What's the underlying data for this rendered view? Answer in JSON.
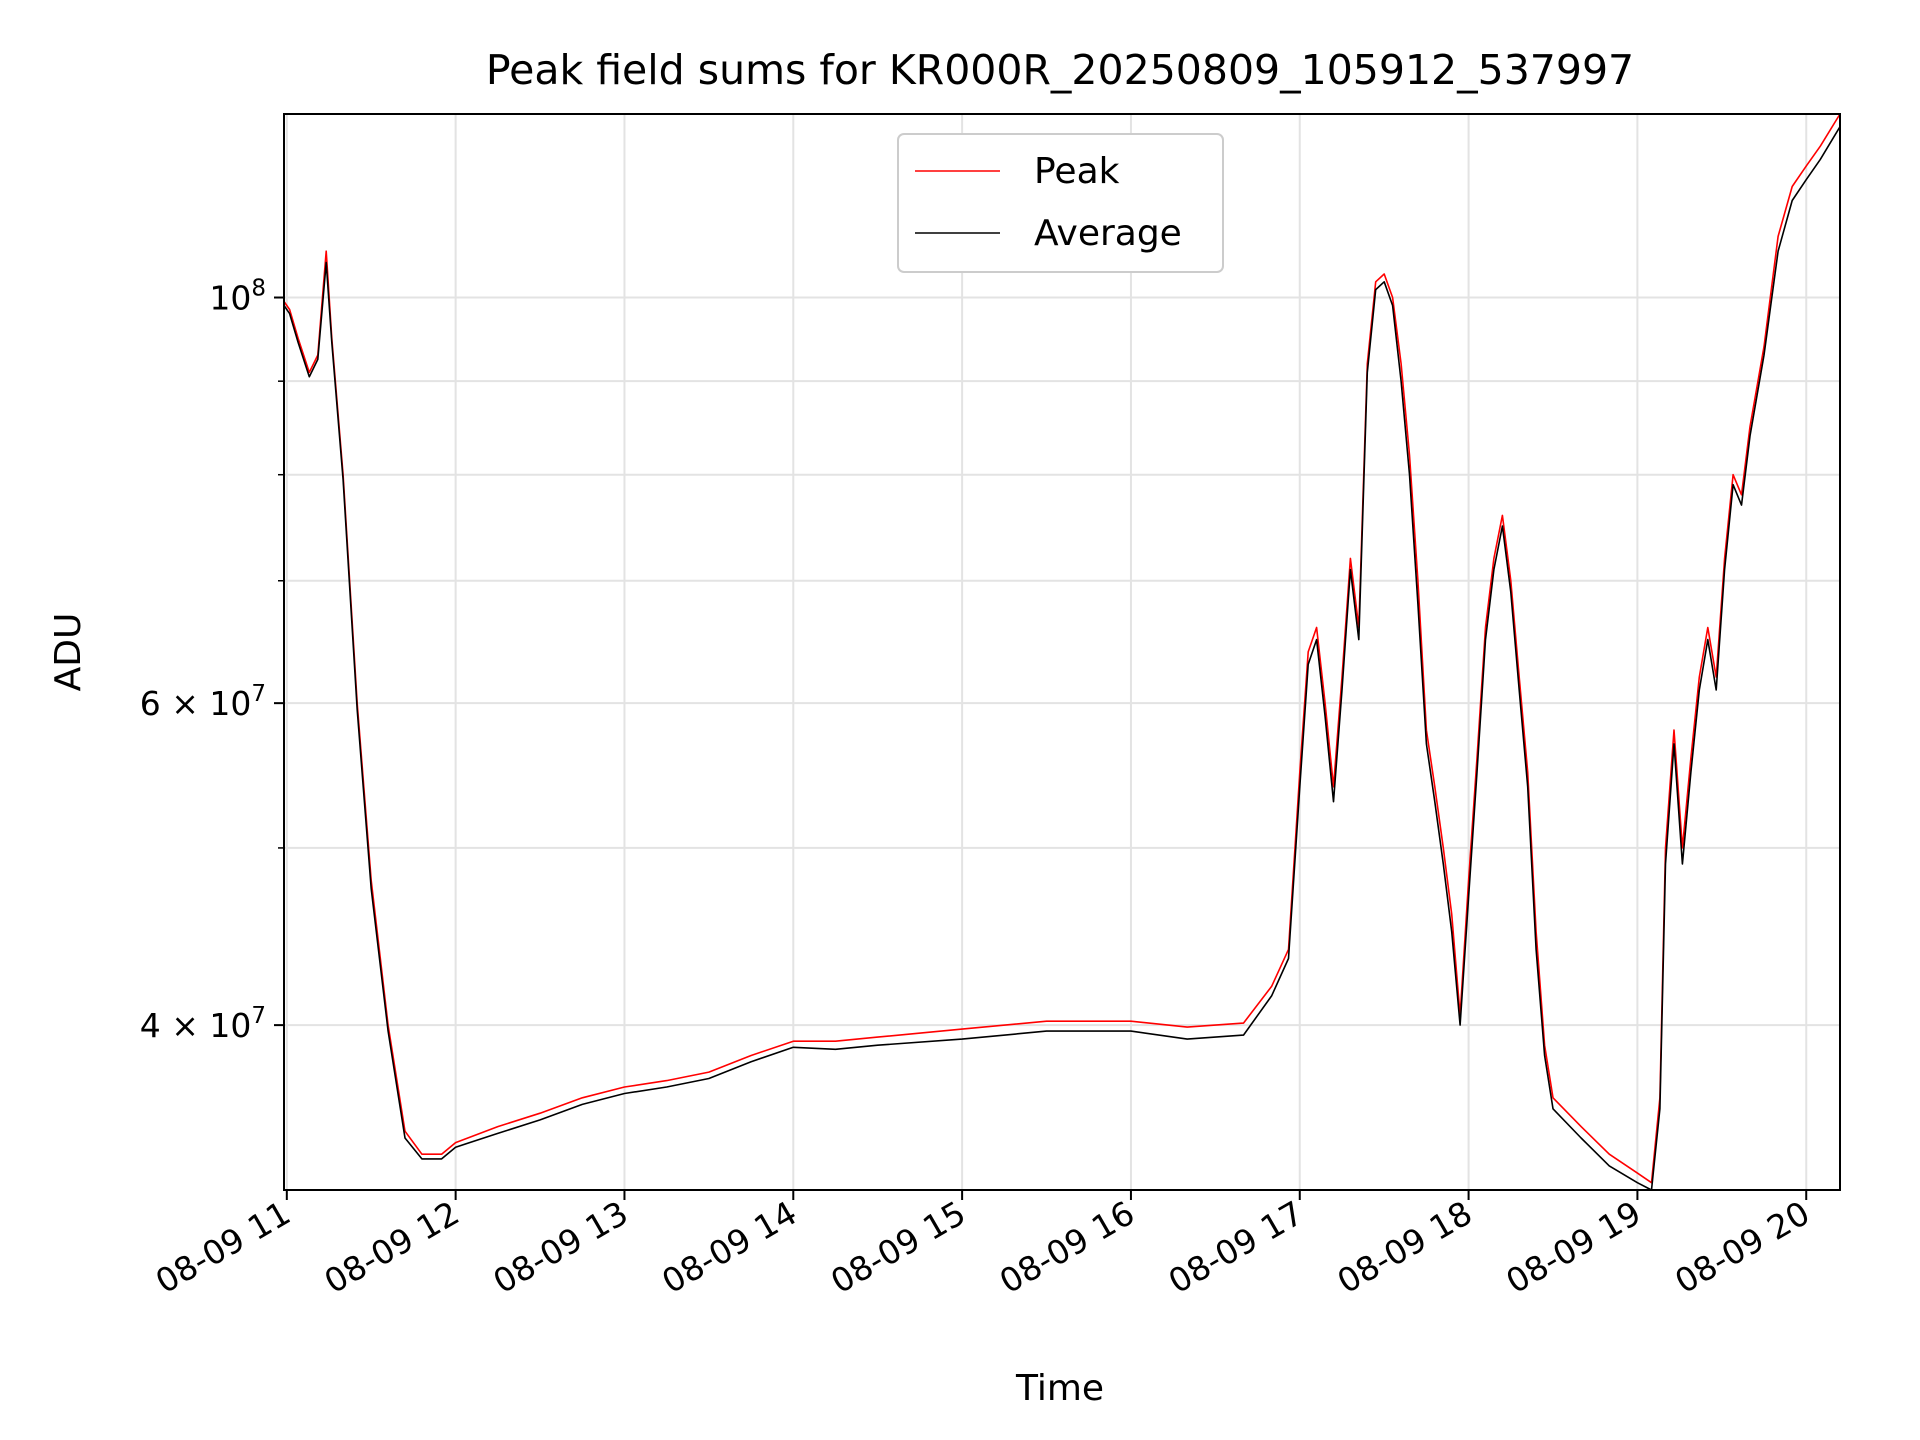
{
  "chart_data": {
    "type": "line",
    "title": "Peak field sums for KR000R_20250809_105912_537997",
    "xlabel": "Time",
    "ylabel": "ADU",
    "y_scale": "log",
    "ylim": [
      32500000,
      126000000
    ],
    "xlim": [
      "08-09 10:59",
      "08-09 20:12"
    ],
    "grid": true,
    "legend_position": "top-center",
    "x_ticks": [
      "08-09 11",
      "08-09 12",
      "08-09 13",
      "08-09 14",
      "08-09 15",
      "08-09 16",
      "08-09 17",
      "08-09 18",
      "08-09 19",
      "08-09 20"
    ],
    "y_ticks": [
      {
        "value": 40000000,
        "mantissa": "4",
        "exponent": "7"
      },
      {
        "value": 60000000,
        "mantissa": "6",
        "exponent": "7"
      },
      {
        "value": 100000000,
        "mantissa": "",
        "exponent": "8"
      }
    ],
    "series": [
      {
        "name": "Peak",
        "color": "#ff0000",
        "points": [
          [
            "10:59",
            99500000
          ],
          [
            "11:01",
            98500000
          ],
          [
            "11:04",
            95000000
          ],
          [
            "11:08",
            91000000
          ],
          [
            "11:11",
            93000000
          ],
          [
            "11:14",
            106000000
          ],
          [
            "11:16",
            95000000
          ],
          [
            "11:20",
            80000000
          ],
          [
            "11:25",
            60000000
          ],
          [
            "11:30",
            48000000
          ],
          [
            "11:36",
            40000000
          ],
          [
            "11:42",
            35000000
          ],
          [
            "11:48",
            34000000
          ],
          [
            "11:55",
            34000000
          ],
          [
            "12:00",
            34500000
          ],
          [
            "12:15",
            35200000
          ],
          [
            "12:30",
            35800000
          ],
          [
            "12:45",
            36500000
          ],
          [
            "13:00",
            37000000
          ],
          [
            "13:15",
            37300000
          ],
          [
            "13:30",
            37700000
          ],
          [
            "13:45",
            38500000
          ],
          [
            "14:00",
            39200000
          ],
          [
            "14:15",
            39200000
          ],
          [
            "14:30",
            39400000
          ],
          [
            "15:00",
            39800000
          ],
          [
            "15:30",
            40200000
          ],
          [
            "16:00",
            40200000
          ],
          [
            "16:20",
            39900000
          ],
          [
            "16:40",
            40100000
          ],
          [
            "16:50",
            42000000
          ],
          [
            "16:56",
            44000000
          ],
          [
            "17:00",
            55000000
          ],
          [
            "17:03",
            64000000
          ],
          [
            "17:06",
            66000000
          ],
          [
            "17:09",
            60000000
          ],
          [
            "17:12",
            54000000
          ],
          [
            "17:15",
            62000000
          ],
          [
            "17:18",
            72000000
          ],
          [
            "17:21",
            66000000
          ],
          [
            "17:24",
            92000000
          ],
          [
            "17:27",
            102000000
          ],
          [
            "17:30",
            103000000
          ],
          [
            "17:33",
            100000000
          ],
          [
            "17:36",
            92000000
          ],
          [
            "17:39",
            82000000
          ],
          [
            "17:42",
            70000000
          ],
          [
            "17:45",
            58000000
          ],
          [
            "17:48",
            54000000
          ],
          [
            "17:51",
            50000000
          ],
          [
            "17:54",
            46000000
          ],
          [
            "17:57",
            40500000
          ],
          [
            "18:00",
            48000000
          ],
          [
            "18:03",
            56000000
          ],
          [
            "18:06",
            66000000
          ],
          [
            "18:09",
            72000000
          ],
          [
            "18:12",
            76000000
          ],
          [
            "18:15",
            70000000
          ],
          [
            "18:18",
            62000000
          ],
          [
            "18:21",
            55000000
          ],
          [
            "18:24",
            45000000
          ],
          [
            "18:27",
            39000000
          ],
          [
            "18:30",
            36500000
          ],
          [
            "18:40",
            35200000
          ],
          [
            "18:50",
            34000000
          ],
          [
            "19:00",
            33200000
          ],
          [
            "19:05",
            32800000
          ],
          [
            "19:08",
            36500000
          ],
          [
            "19:10",
            50000000
          ],
          [
            "19:13",
            58000000
          ],
          [
            "19:16",
            50000000
          ],
          [
            "19:19",
            56000000
          ],
          [
            "19:22",
            62000000
          ],
          [
            "19:25",
            66000000
          ],
          [
            "19:28",
            62000000
          ],
          [
            "19:31",
            72000000
          ],
          [
            "19:34",
            80000000
          ],
          [
            "19:37",
            78000000
          ],
          [
            "19:40",
            85000000
          ],
          [
            "19:45",
            94000000
          ],
          [
            "19:50",
            108000000
          ],
          [
            "19:55",
            115000000
          ],
          [
            "20:00",
            118000000
          ],
          [
            "20:05",
            121000000
          ],
          [
            "20:12",
            126000000
          ]
        ]
      },
      {
        "name": "Average",
        "color": "#000000",
        "points": [
          [
            "10:59",
            99000000
          ],
          [
            "11:01",
            98000000
          ],
          [
            "11:04",
            94500000
          ],
          [
            "11:08",
            90500000
          ],
          [
            "11:11",
            92500000
          ],
          [
            "11:14",
            104500000
          ],
          [
            "11:16",
            94500000
          ],
          [
            "11:20",
            79500000
          ],
          [
            "11:25",
            59500000
          ],
          [
            "11:30",
            47500000
          ],
          [
            "11:36",
            39700000
          ],
          [
            "11:42",
            34700000
          ],
          [
            "11:48",
            33800000
          ],
          [
            "11:55",
            33800000
          ],
          [
            "12:00",
            34300000
          ],
          [
            "12:15",
            34900000
          ],
          [
            "12:30",
            35500000
          ],
          [
            "12:45",
            36200000
          ],
          [
            "13:00",
            36700000
          ],
          [
            "13:15",
            37000000
          ],
          [
            "13:30",
            37400000
          ],
          [
            "13:45",
            38200000
          ],
          [
            "14:00",
            38900000
          ],
          [
            "14:15",
            38800000
          ],
          [
            "14:30",
            39000000
          ],
          [
            "15:00",
            39300000
          ],
          [
            "15:30",
            39700000
          ],
          [
            "16:00",
            39700000
          ],
          [
            "16:20",
            39300000
          ],
          [
            "16:40",
            39500000
          ],
          [
            "16:50",
            41500000
          ],
          [
            "16:56",
            43500000
          ],
          [
            "17:00",
            54000000
          ],
          [
            "17:03",
            63000000
          ],
          [
            "17:06",
            65000000
          ],
          [
            "17:09",
            59000000
          ],
          [
            "17:12",
            53000000
          ],
          [
            "17:15",
            61000000
          ],
          [
            "17:18",
            71000000
          ],
          [
            "17:21",
            65000000
          ],
          [
            "17:24",
            91000000
          ],
          [
            "17:27",
            101000000
          ],
          [
            "17:30",
            102000000
          ],
          [
            "17:33",
            99000000
          ],
          [
            "17:36",
            90000000
          ],
          [
            "17:39",
            80000000
          ],
          [
            "17:42",
            68000000
          ],
          [
            "17:45",
            57000000
          ],
          [
            "17:48",
            53000000
          ],
          [
            "17:51",
            49000000
          ],
          [
            "17:54",
            45000000
          ],
          [
            "17:57",
            40000000
          ],
          [
            "18:00",
            47000000
          ],
          [
            "18:03",
            55000000
          ],
          [
            "18:06",
            65000000
          ],
          [
            "18:09",
            71000000
          ],
          [
            "18:12",
            75000000
          ],
          [
            "18:15",
            69000000
          ],
          [
            "18:18",
            61000000
          ],
          [
            "18:21",
            54000000
          ],
          [
            "18:24",
            44000000
          ],
          [
            "18:27",
            38500000
          ],
          [
            "18:30",
            36000000
          ],
          [
            "18:40",
            34700000
          ],
          [
            "18:50",
            33500000
          ],
          [
            "19:00",
            32800000
          ],
          [
            "19:05",
            32500000
          ],
          [
            "19:08",
            36000000
          ],
          [
            "19:10",
            49000000
          ],
          [
            "19:13",
            57000000
          ],
          [
            "19:16",
            49000000
          ],
          [
            "19:19",
            55000000
          ],
          [
            "19:22",
            61000000
          ],
          [
            "19:25",
            65000000
          ],
          [
            "19:28",
            61000000
          ],
          [
            "19:31",
            71000000
          ],
          [
            "19:34",
            79000000
          ],
          [
            "19:37",
            77000000
          ],
          [
            "19:40",
            84000000
          ],
          [
            "19:45",
            93000000
          ],
          [
            "19:50",
            106000000
          ],
          [
            "19:55",
            113000000
          ],
          [
            "20:00",
            116000000
          ],
          [
            "20:05",
            119000000
          ],
          [
            "20:12",
            124000000
          ]
        ]
      }
    ]
  }
}
